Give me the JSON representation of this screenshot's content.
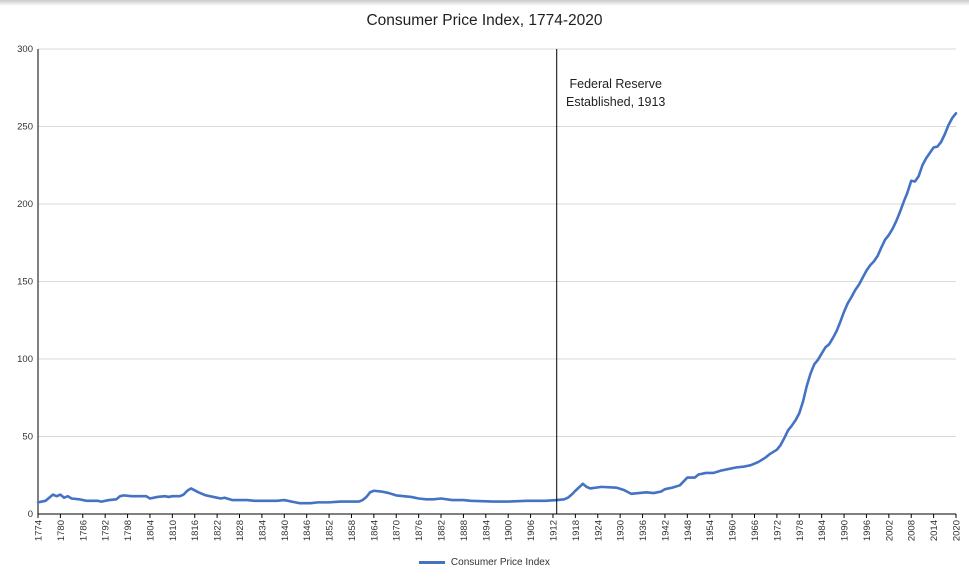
{
  "chart_data": {
    "type": "line",
    "title": "Consumer Price Index, 1774-2020",
    "xlabel": "",
    "ylabel": "",
    "xlim": [
      1774,
      2020
    ],
    "ylim": [
      0,
      300
    ],
    "y_ticks": [
      0,
      50,
      100,
      150,
      200,
      250,
      300
    ],
    "x_ticks": [
      1774,
      1780,
      1786,
      1792,
      1798,
      1804,
      1810,
      1816,
      1822,
      1828,
      1834,
      1840,
      1846,
      1852,
      1858,
      1864,
      1870,
      1876,
      1882,
      1888,
      1894,
      1900,
      1906,
      1912,
      1918,
      1924,
      1930,
      1936,
      1942,
      1948,
      1954,
      1960,
      1966,
      1972,
      1978,
      1984,
      1990,
      1996,
      2002,
      2008,
      2014,
      2020
    ],
    "grid": "horizontal",
    "legend_position": "bottom",
    "series": [
      {
        "name": "Consumer Price Index",
        "color": "#4472c4",
        "points": [
          [
            1774,
            7.5
          ],
          [
            1776,
            8.5
          ],
          [
            1778,
            12.5
          ],
          [
            1779,
            11.5
          ],
          [
            1780,
            12.5
          ],
          [
            1781,
            10.5
          ],
          [
            1782,
            11.5
          ],
          [
            1783,
            10
          ],
          [
            1785,
            9.5
          ],
          [
            1787,
            8.5
          ],
          [
            1790,
            8.5
          ],
          [
            1791,
            8
          ],
          [
            1793,
            9
          ],
          [
            1795,
            9.5
          ],
          [
            1796,
            11.5
          ],
          [
            1797,
            12
          ],
          [
            1799,
            11.5
          ],
          [
            1803,
            11.5
          ],
          [
            1804,
            10
          ],
          [
            1806,
            11
          ],
          [
            1808,
            11.5
          ],
          [
            1809,
            11
          ],
          [
            1810,
            11.5
          ],
          [
            1812,
            11.5
          ],
          [
            1813,
            12.5
          ],
          [
            1814,
            15
          ],
          [
            1815,
            16.5
          ],
          [
            1817,
            14
          ],
          [
            1819,
            12
          ],
          [
            1821,
            11
          ],
          [
            1823,
            10
          ],
          [
            1824,
            10.5
          ],
          [
            1826,
            9
          ],
          [
            1830,
            9
          ],
          [
            1832,
            8.5
          ],
          [
            1838,
            8.5
          ],
          [
            1840,
            9
          ],
          [
            1842,
            8
          ],
          [
            1844,
            7
          ],
          [
            1847,
            7
          ],
          [
            1849,
            7.5
          ],
          [
            1852,
            7.5
          ],
          [
            1855,
            8
          ],
          [
            1857,
            8
          ],
          [
            1860,
            8
          ],
          [
            1861,
            9
          ],
          [
            1862,
            11
          ],
          [
            1863,
            14
          ],
          [
            1864,
            15
          ],
          [
            1866,
            14.5
          ],
          [
            1868,
            13.5
          ],
          [
            1870,
            12
          ],
          [
            1872,
            11.5
          ],
          [
            1874,
            11
          ],
          [
            1876,
            10
          ],
          [
            1878,
            9.5
          ],
          [
            1880,
            9.5
          ],
          [
            1882,
            10
          ],
          [
            1885,
            9
          ],
          [
            1888,
            9
          ],
          [
            1890,
            8.5
          ],
          [
            1896,
            8
          ],
          [
            1900,
            8
          ],
          [
            1905,
            8.5
          ],
          [
            1910,
            8.5
          ],
          [
            1913,
            9
          ],
          [
            1915,
            9.5
          ],
          [
            1916,
            10.5
          ],
          [
            1917,
            12.5
          ],
          [
            1918,
            15
          ],
          [
            1920,
            19.5
          ],
          [
            1921,
            17.5
          ],
          [
            1922,
            16.5
          ],
          [
            1925,
            17.5
          ],
          [
            1929,
            17
          ],
          [
            1931,
            15.5
          ],
          [
            1933,
            13
          ],
          [
            1935,
            13.5
          ],
          [
            1937,
            14
          ],
          [
            1939,
            13.5
          ],
          [
            1941,
            14.5
          ],
          [
            1942,
            16
          ],
          [
            1944,
            17
          ],
          [
            1946,
            18.5
          ],
          [
            1947,
            21
          ],
          [
            1948,
            23.5
          ],
          [
            1950,
            23.5
          ],
          [
            1951,
            25.5
          ],
          [
            1953,
            26.5
          ],
          [
            1955,
            26.5
          ],
          [
            1957,
            28
          ],
          [
            1959,
            29
          ],
          [
            1961,
            30
          ],
          [
            1963,
            30.5
          ],
          [
            1965,
            31.5
          ],
          [
            1967,
            33.5
          ],
          [
            1969,
            36.5
          ],
          [
            1970,
            38.5
          ],
          [
            1972,
            41.5
          ],
          [
            1973,
            44.5
          ],
          [
            1974,
            49
          ],
          [
            1975,
            54
          ],
          [
            1976,
            57
          ],
          [
            1977,
            60.5
          ],
          [
            1978,
            65
          ],
          [
            1979,
            72.5
          ],
          [
            1980,
            82.5
          ],
          [
            1981,
            90.5
          ],
          [
            1982,
            96.5
          ],
          [
            1983,
            99.5
          ],
          [
            1984,
            103.5
          ],
          [
            1985,
            107.5
          ],
          [
            1986,
            109.5
          ],
          [
            1987,
            113.5
          ],
          [
            1988,
            118
          ],
          [
            1989,
            124
          ],
          [
            1990,
            130.5
          ],
          [
            1991,
            136
          ],
          [
            1992,
            140
          ],
          [
            1993,
            144.5
          ],
          [
            1994,
            148
          ],
          [
            1995,
            152.5
          ],
          [
            1996,
            157
          ],
          [
            1997,
            160.5
          ],
          [
            1998,
            163
          ],
          [
            1999,
            166.5
          ],
          [
            2000,
            172
          ],
          [
            2001,
            177
          ],
          [
            2002,
            180
          ],
          [
            2003,
            184
          ],
          [
            2004,
            189
          ],
          [
            2005,
            195
          ],
          [
            2006,
            201.5
          ],
          [
            2007,
            207.5
          ],
          [
            2008,
            215
          ],
          [
            2009,
            214.5
          ],
          [
            2010,
            218
          ],
          [
            2011,
            225
          ],
          [
            2012,
            229.5
          ],
          [
            2013,
            233
          ],
          [
            2014,
            236.5
          ],
          [
            2015,
            237
          ],
          [
            2016,
            240
          ],
          [
            2017,
            245
          ],
          [
            2018,
            251
          ],
          [
            2019,
            255.5
          ],
          [
            2020,
            258.5
          ]
        ]
      }
    ],
    "annotations": [
      {
        "type": "vline",
        "x": 1913,
        "lines": [
          "Federal Reserve",
          "Established, 1913"
        ]
      }
    ],
    "legend": [
      "Consumer Price Index"
    ]
  }
}
